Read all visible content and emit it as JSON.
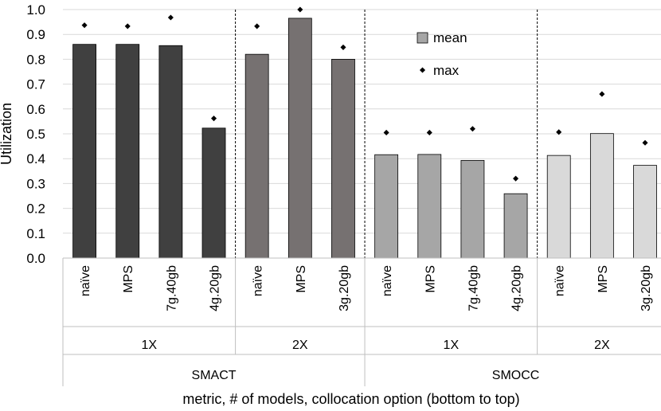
{
  "chart_data": {
    "type": "bar",
    "ylabel": "Utilization",
    "xlabel": "metric, # of models, collocation option (bottom to top)",
    "ylim": [
      0,
      1.0
    ],
    "yticks": [
      "0.0",
      "0.1",
      "0.2",
      "0.3",
      "0.4",
      "0.5",
      "0.6",
      "0.7",
      "0.8",
      "0.9",
      "1.0"
    ],
    "legend": {
      "mean_label": "mean",
      "max_label": "max",
      "position": "top-right"
    },
    "groups": [
      {
        "metric": "SMACT",
        "models": "1X",
        "color": "#404040",
        "categories": [
          "naïve",
          "MPS",
          "7g.40gb",
          "4g.20gb"
        ],
        "mean": [
          0.86,
          0.86,
          0.855,
          0.523
        ],
        "max": [
          0.937,
          0.933,
          0.968,
          0.562
        ]
      },
      {
        "metric": "SMACT",
        "models": "2X",
        "color": "#767171",
        "categories": [
          "naïve",
          "MPS",
          "3g.20gb"
        ],
        "mean": [
          0.82,
          0.965,
          0.8
        ],
        "max": [
          0.933,
          1.0,
          0.848
        ]
      },
      {
        "metric": "SMOCC",
        "models": "1X",
        "color": "#a6a6a6",
        "categories": [
          "naïve",
          "MPS",
          "7g.40gb",
          "4g.20gb"
        ],
        "mean": [
          0.416,
          0.417,
          0.393,
          0.259
        ],
        "max": [
          0.505,
          0.505,
          0.52,
          0.32
        ]
      },
      {
        "metric": "SMOCC",
        "models": "2X",
        "color": "#d9d9d9",
        "categories": [
          "naïve",
          "MPS",
          "3g.20gb"
        ],
        "mean": [
          0.413,
          0.501,
          0.373
        ],
        "max": [
          0.507,
          0.66,
          0.464
        ]
      }
    ]
  }
}
